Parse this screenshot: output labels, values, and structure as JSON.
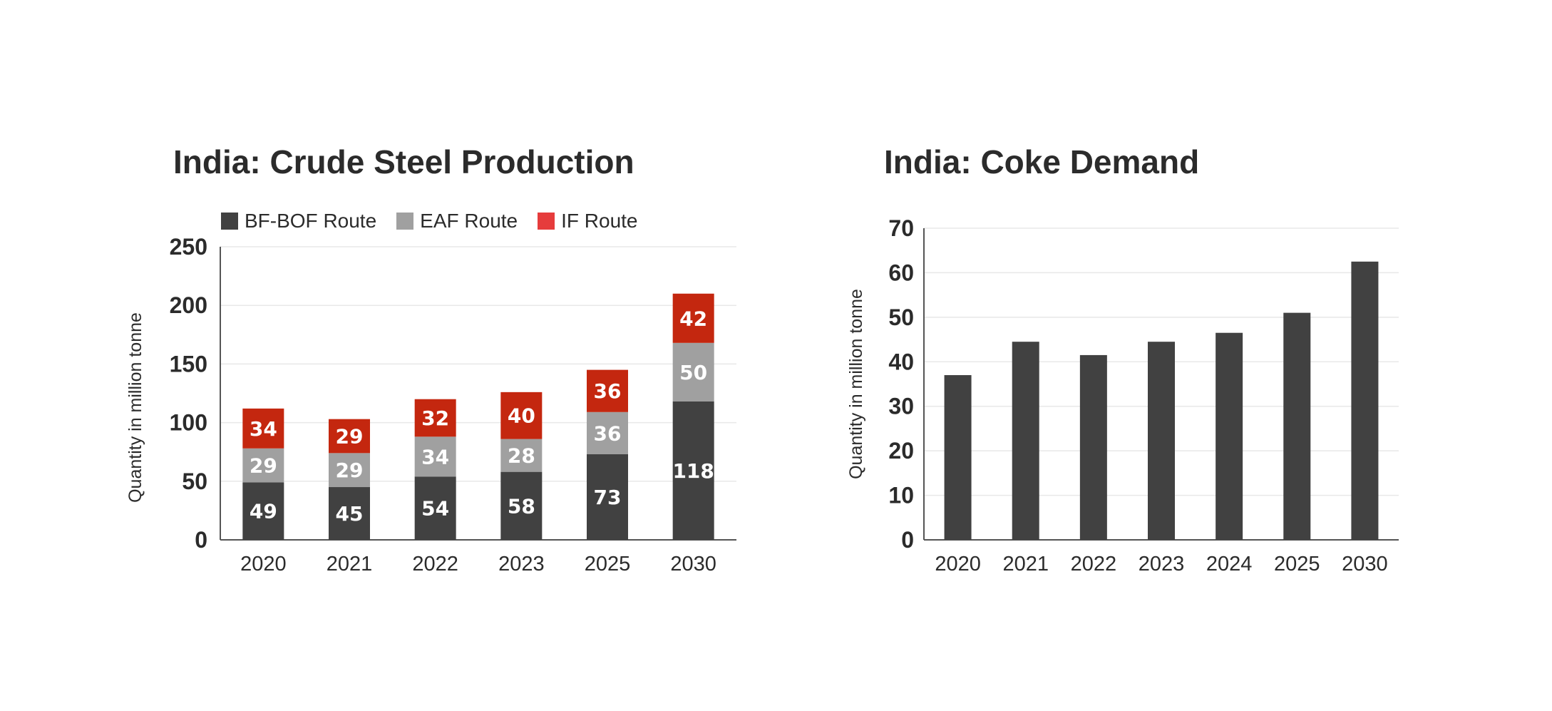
{
  "colors": {
    "bf_bof": "#414141",
    "eaf": "#a0a0a0",
    "if": "#c4270f",
    "if_legend": "#e63c3c",
    "grid": "#e8e8e8",
    "axis": "#555555"
  },
  "chart_data": [
    {
      "type": "bar",
      "stacked": true,
      "title": "India: Crude Steel Production",
      "xlabel": "",
      "ylabel": "Quantity in million tonne",
      "categories": [
        "2020",
        "2021",
        "2022",
        "2023",
        "2025",
        "2030"
      ],
      "series": [
        {
          "name": "BF-BOF Route",
          "values": [
            49,
            45,
            54,
            58,
            73,
            118
          ]
        },
        {
          "name": "EAF Route",
          "values": [
            29,
            29,
            34,
            28,
            36,
            50
          ]
        },
        {
          "name": "IF Route",
          "values": [
            34,
            29,
            32,
            40,
            36,
            42
          ]
        }
      ],
      "ylim": [
        0,
        250
      ],
      "yticks": [
        0,
        50,
        100,
        150,
        200,
        250
      ],
      "grid": true,
      "legend": "top"
    },
    {
      "type": "bar",
      "title": "India: Coke Demand",
      "xlabel": "",
      "ylabel": "Quantity in million tonne",
      "categories": [
        "2020",
        "2021",
        "2022",
        "2023",
        "2024",
        "2025",
        "2030"
      ],
      "values": [
        37,
        44.5,
        41.5,
        44.5,
        46.5,
        51,
        62.5
      ],
      "ylim": [
        0,
        70
      ],
      "yticks": [
        0,
        10,
        20,
        30,
        40,
        50,
        60,
        70
      ],
      "grid": true,
      "legend": "none"
    }
  ]
}
